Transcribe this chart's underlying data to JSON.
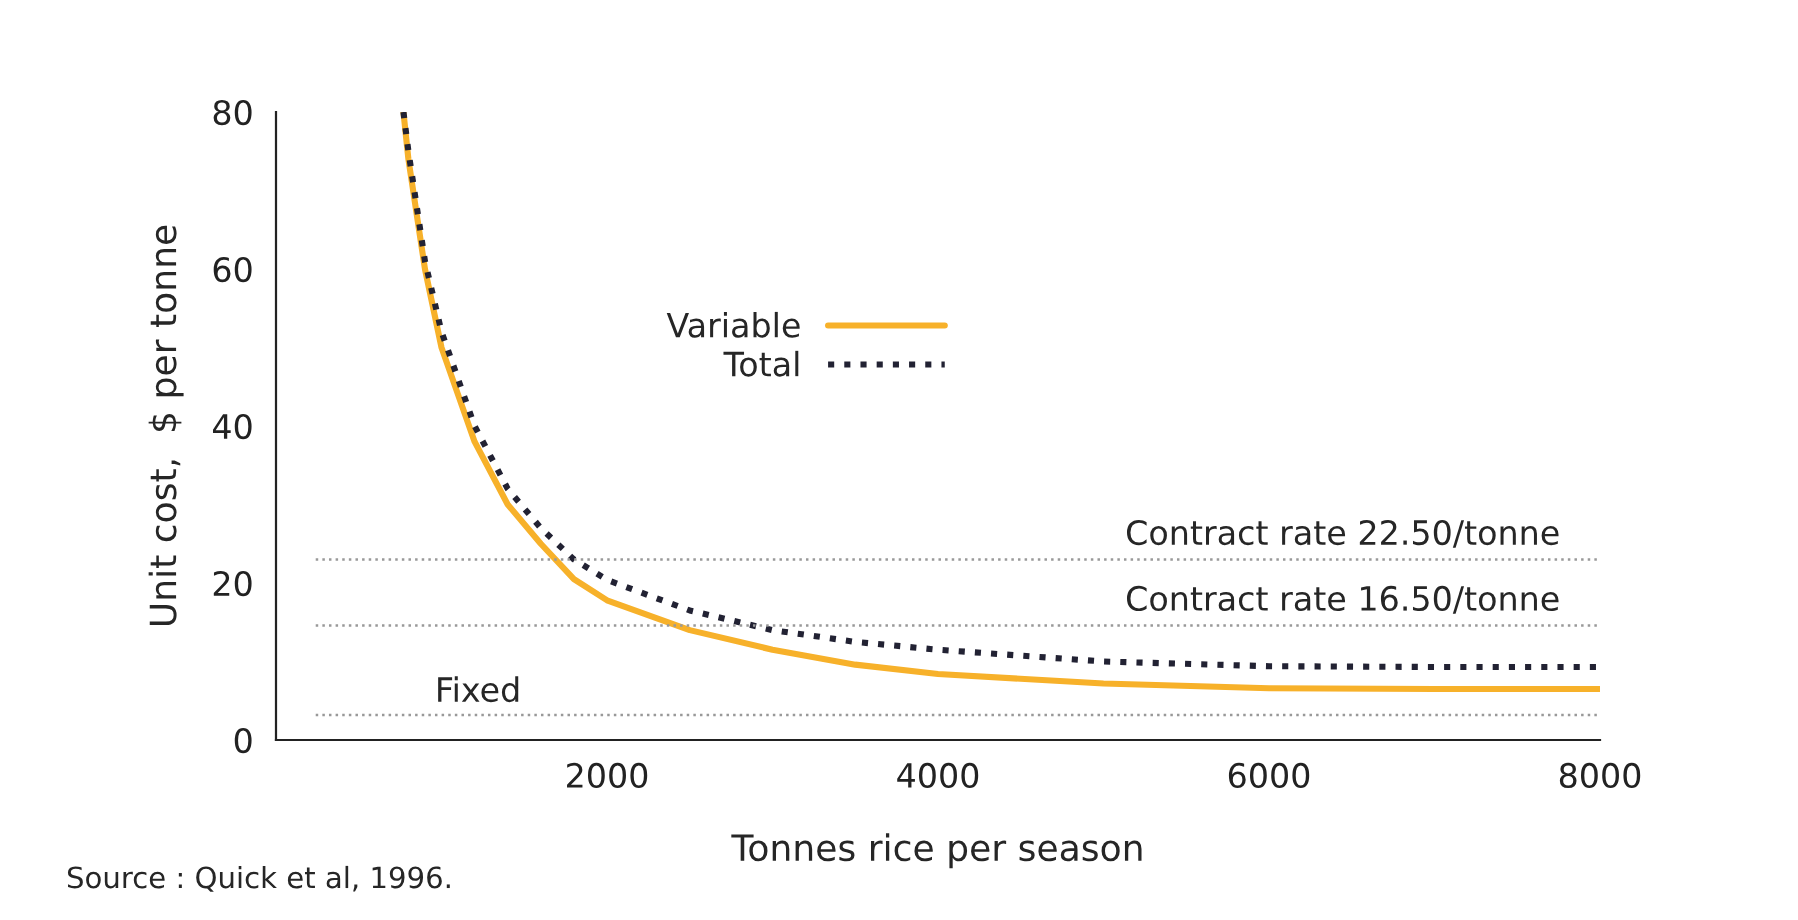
{
  "chart_data": {
    "type": "line",
    "xlabel": "Tonnes rice per season",
    "ylabel": "Unit cost,  $ per tonne",
    "series": [
      {
        "name": "Variable",
        "color": "#f7b12a",
        "line_style": "solid",
        "x": [
          770,
          800,
          900,
          1000,
          1200,
          1400,
          1600,
          1800,
          2000,
          2500,
          3000,
          3500,
          4000,
          5000,
          6000,
          7000,
          8000
        ],
        "values": [
          80,
          74,
          60,
          50,
          38,
          30,
          25,
          20.5,
          17.8,
          14,
          11.5,
          9.6,
          8.4,
          7.2,
          6.6,
          6.5,
          6.5
        ]
      },
      {
        "name": "Total",
        "color": "#222233",
        "line_style": "dotted",
        "x": [
          770,
          800,
          900,
          1000,
          1200,
          1400,
          1600,
          1800,
          2000,
          2500,
          3000,
          3500,
          4000,
          5000,
          6000,
          7000,
          8000
        ],
        "values": [
          80,
          75,
          61,
          52,
          40,
          32,
          27,
          23,
          20.4,
          16.5,
          14,
          12.5,
          11.5,
          10,
          9.4,
          9.3,
          9.3
        ]
      }
    ],
    "xlim": [
      0,
      8000
    ],
    "ylim": [
      0,
      80
    ],
    "xticks": [
      2000,
      4000,
      6000,
      8000
    ],
    "yticks": [
      0,
      20,
      40,
      60,
      80
    ],
    "ref_lines": [
      {
        "axis": "y",
        "value": 23,
        "label": "Contract rate 22.50/tonne",
        "color": "#999999",
        "line_style": "dotted"
      },
      {
        "axis": "y",
        "value": 14.6,
        "label": "Contract rate 16.50/tonne",
        "color": "#999999",
        "line_style": "dotted"
      },
      {
        "axis": "y",
        "value": 3.2,
        "label": "Fixed",
        "color": "#999999",
        "line_style": "dotted"
      }
    ],
    "legend": "center",
    "grid": false,
    "annotations": [
      "Source : Quick et al, 1996."
    ]
  }
}
